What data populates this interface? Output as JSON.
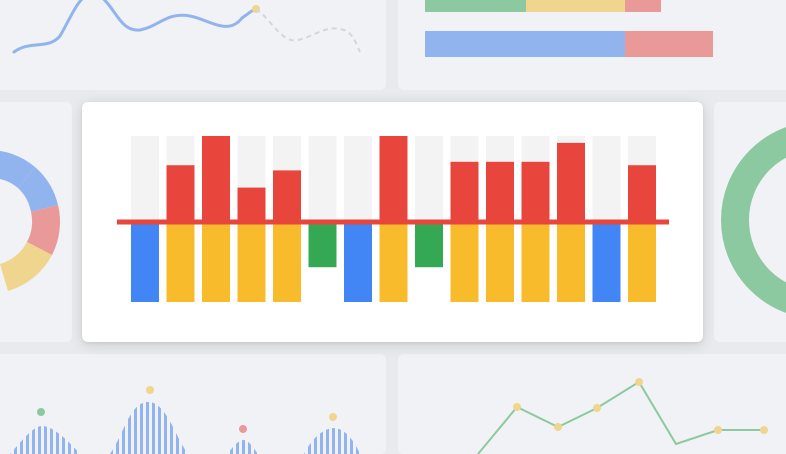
{
  "colors": {
    "red": "#e8453c",
    "blue": "#4285f4",
    "yellow": "#f8bb2c",
    "green": "#34a853",
    "track": "#f3f3f3",
    "light_blue": "#92b4ee",
    "light_green": "#8dc9a0",
    "light_red": "#e99a98",
    "light_yellow": "#f0d58e"
  },
  "chart_data": {
    "type": "bar",
    "description_hidden": false,
    "series": [
      {
        "name": "",
        "values": [
          0,
          66,
          100,
          40,
          60,
          0,
          0,
          100,
          0,
          70,
          70,
          70,
          92,
          0,
          66
        ]
      },
      {
        "name": "",
        "values": [
          -92,
          -92,
          -92,
          -92,
          -92,
          -52,
          -92,
          -92,
          -52,
          -92,
          -92,
          -92,
          -92,
          -92,
          -92
        ]
      }
    ],
    "bottom_bar_colors": [
      "blue",
      "yellow",
      "yellow",
      "yellow",
      "yellow",
      "green",
      "blue",
      "yellow",
      "green",
      "yellow",
      "yellow",
      "yellow",
      "yellow",
      "blue",
      "yellow"
    ],
    "ylim": [
      -100,
      100
    ],
    "track_top": 100,
    "grid": false,
    "legend": "none"
  }
}
